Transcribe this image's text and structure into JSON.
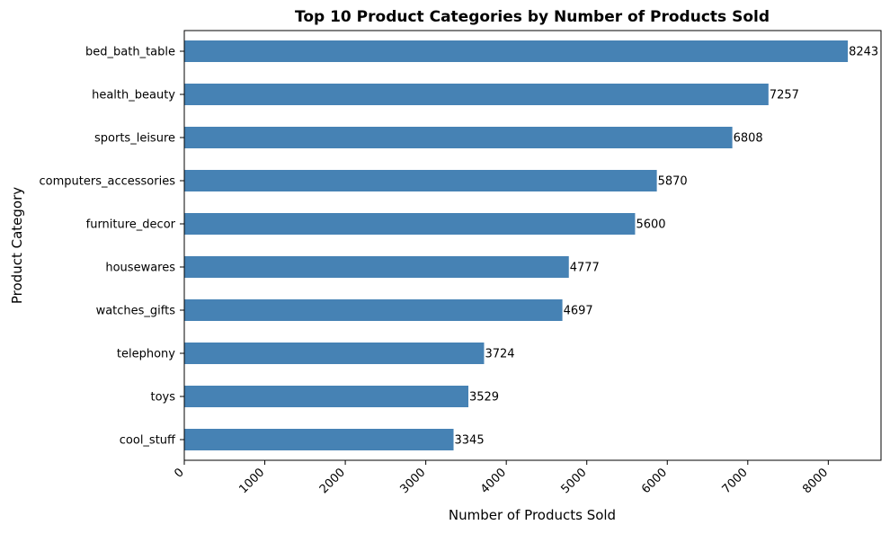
{
  "chart_data": {
    "type": "bar",
    "orientation": "horizontal",
    "title": "Top 10 Product Categories by Number of Products Sold",
    "xlabel": "Number of Products Sold",
    "ylabel": "Product Category",
    "categories": [
      "bed_bath_table",
      "health_beauty",
      "sports_leisure",
      "computers_accessories",
      "furniture_decor",
      "housewares",
      "watches_gifts",
      "telephony",
      "toys",
      "cool_stuff"
    ],
    "values": [
      8243,
      7257,
      6808,
      5870,
      5600,
      4777,
      4697,
      3724,
      3529,
      3345
    ],
    "xlim": [
      0,
      8655
    ],
    "xticks": [
      "0",
      "1000",
      "2000",
      "3000",
      "4000",
      "5000",
      "6000",
      "7000",
      "8000"
    ],
    "bar_color": "#4682b4",
    "grid": false,
    "data_labels": true
  }
}
